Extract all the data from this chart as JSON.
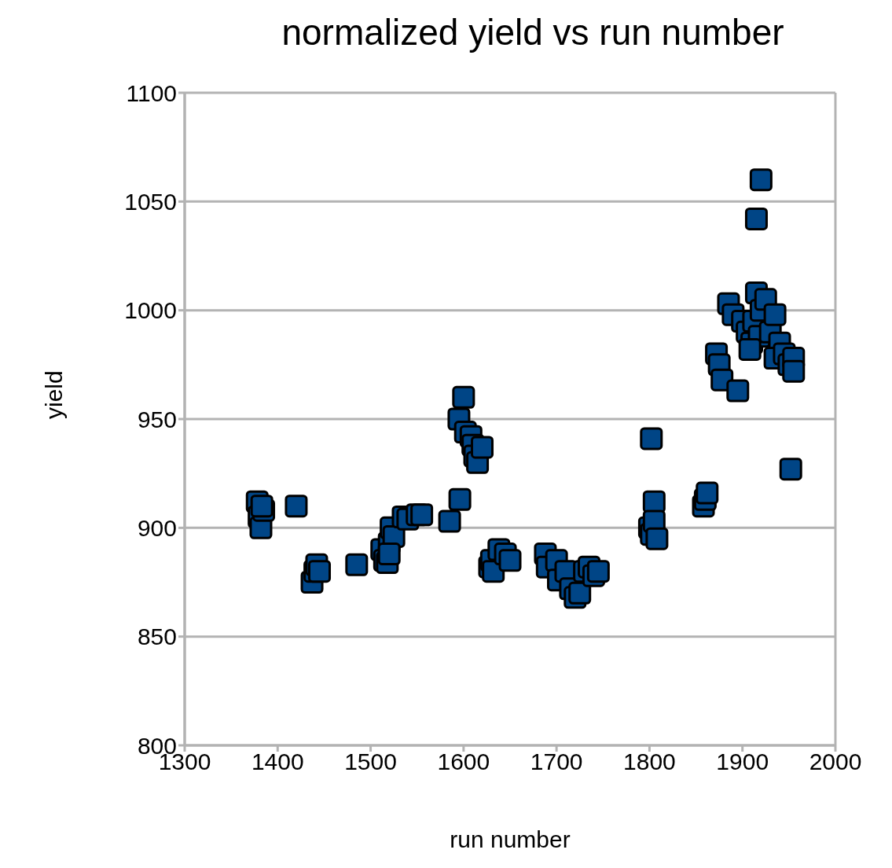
{
  "chart_data": {
    "type": "scatter",
    "title": "normalized yield vs run number",
    "xlabel": "run number",
    "ylabel": "yield",
    "series": [
      {
        "color": "#004586",
        "x": [
          1378,
          1380,
          1382,
          1385,
          1383,
          1420,
          1437,
          1440,
          1442,
          1445,
          1485,
          1512,
          1515,
          1518,
          1520,
          1522,
          1525,
          1520,
          1535,
          1540,
          1550,
          1555,
          1585,
          1596,
          1600,
          1595,
          1602,
          1608,
          1610,
          1612,
          1615,
          1620,
          1628,
          1630,
          1632,
          1638,
          1645,
          1650,
          1688,
          1690,
          1700,
          1702,
          1710,
          1715,
          1720,
          1725,
          1730,
          1735,
          1740,
          1745,
          1802,
          1805,
          1800,
          1802,
          1805,
          1808,
          1858,
          1860,
          1862,
          1872,
          1875,
          1878,
          1895,
          1920,
          1915,
          1885,
          1890,
          1900,
          1905,
          1910,
          1912,
          1915,
          1920,
          1918,
          1925,
          1930,
          1935,
          1940,
          1935,
          1945,
          1950,
          1955,
          1955,
          1952,
          1908
        ],
        "values": [
          912,
          905,
          900,
          908,
          910,
          910,
          875,
          880,
          883,
          880,
          883,
          890,
          885,
          884,
          893,
          900,
          896,
          888,
          905,
          904,
          906,
          906,
          903,
          913,
          960,
          950,
          944,
          942,
          938,
          933,
          930,
          937,
          882,
          885,
          880,
          890,
          888,
          885,
          888,
          882,
          885,
          876,
          880,
          872,
          868,
          870,
          880,
          882,
          878,
          880,
          941,
          912,
          900,
          897,
          903,
          895,
          910,
          913,
          916,
          980,
          975,
          968,
          963,
          1060,
          1042,
          1003,
          998,
          995,
          990,
          985,
          995,
          1008,
          1000,
          988,
          1005,
          990,
          998,
          985,
          978,
          980,
          975,
          978,
          972,
          927,
          982
        ]
      }
    ],
    "xlim": [
      1300,
      2000
    ],
    "xticks": [
      1300,
      1400,
      1500,
      1600,
      1700,
      1800,
      1900,
      2000
    ],
    "ylim": [
      800,
      1100
    ],
    "yticks": [
      800,
      850,
      900,
      950,
      1000,
      1050,
      1100
    ],
    "grid": "y",
    "marker": "square",
    "legend": false
  }
}
